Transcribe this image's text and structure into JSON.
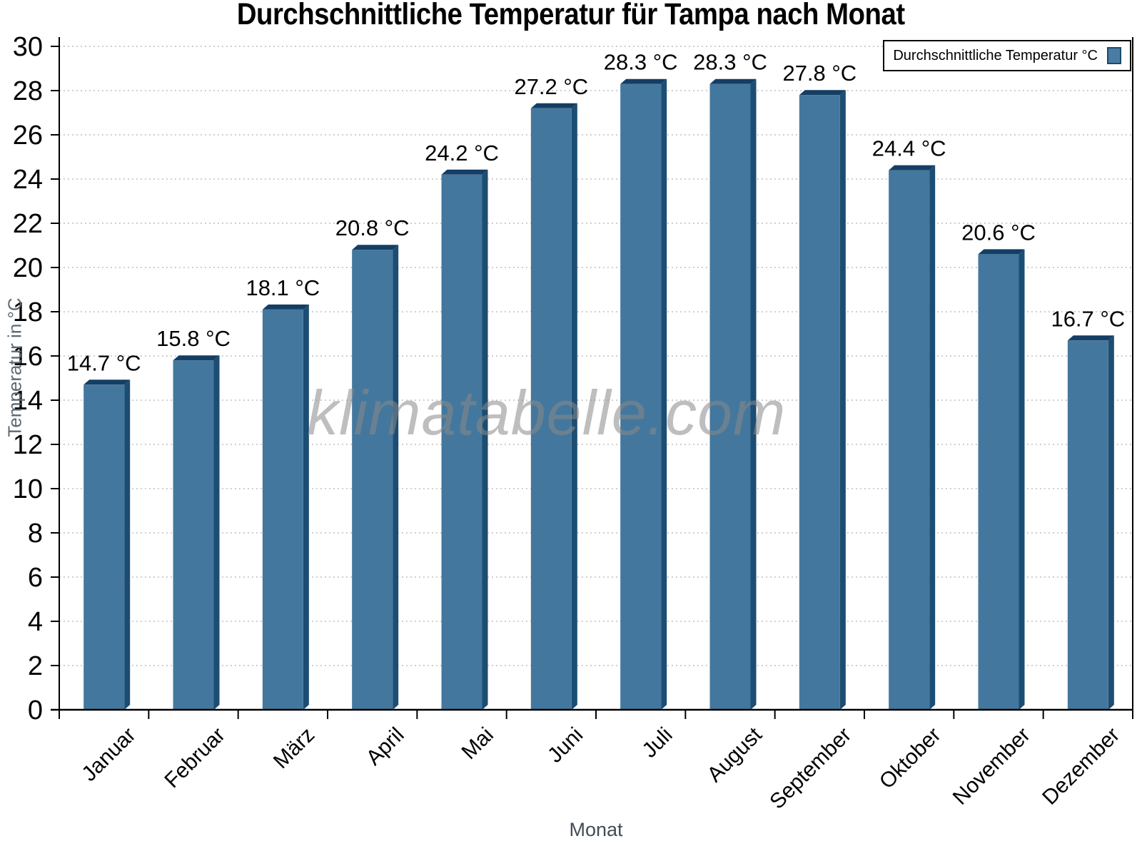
{
  "title": "Durchschnittliche Temperatur für Tampa nach Monat",
  "legend": {
    "label": "Durchschnittliche Temperatur °C"
  },
  "watermark": "klimatabelle.com",
  "y_axis": {
    "title": "Temperatur in °C",
    "tick_min": 0,
    "tick_max": 30,
    "tick_step": 2
  },
  "x_axis": {
    "title": "Monat"
  },
  "colors": {
    "bar_front": "#44779d",
    "bar_side": "#1c4d73",
    "bar_top": "#143e63",
    "grid": "#b9b9b9",
    "axis": "#000000",
    "y_title_color": "#5c6874",
    "x_title_color": "#434c55",
    "watermark_color": "#8a8a8a",
    "legend_swatch": "#4a7ba3",
    "legend_swatch_border": "#1b4a6e"
  },
  "chart_data": {
    "type": "bar",
    "title": "Durchschnittliche Temperatur für Tampa nach Monat",
    "categories": [
      "Januar",
      "Februar",
      "März",
      "April",
      "Mai",
      "Juni",
      "Juli",
      "August",
      "September",
      "Oktober",
      "November",
      "Dezember"
    ],
    "values": [
      14.7,
      15.8,
      18.1,
      20.8,
      24.2,
      27.2,
      28.3,
      28.3,
      27.8,
      24.4,
      20.6,
      16.7
    ],
    "unit": "°C",
    "value_labels": [
      "14.7 °C",
      "15.8 °C",
      "18.1 °C",
      "20.8 °C",
      "24.2 °C",
      "27.2 °C",
      "28.3 °C",
      "28.3 °C",
      "27.8 °C",
      "24.4 °C",
      "20.6 °C",
      "16.7 °C"
    ],
    "xlabel": "Monat",
    "ylabel": "Temperatur in °C",
    "ylim": [
      0,
      30
    ],
    "ytick_step": 2,
    "yticks": [
      0,
      2,
      4,
      6,
      8,
      10,
      12,
      14,
      16,
      18,
      20,
      22,
      24,
      26,
      28,
      30
    ],
    "grid": true,
    "legend_entries": [
      "Durchschnittliche Temperatur °C"
    ],
    "legend_position": "top-right",
    "watermark": "klimatabelle.com"
  }
}
